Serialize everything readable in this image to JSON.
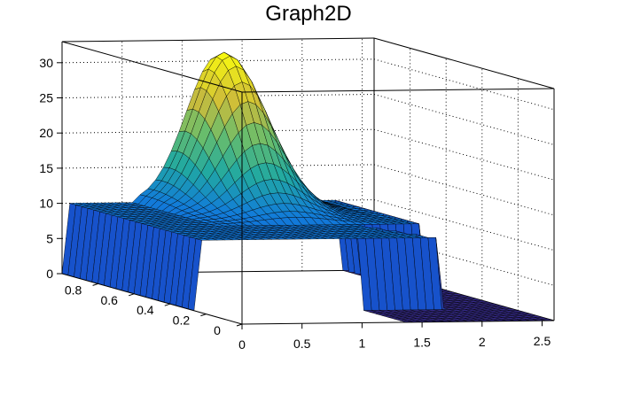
{
  "chart_data": {
    "type": "surface",
    "title": "Graph2D",
    "xlabel": "",
    "ylabel": "",
    "zlabel": "",
    "xlim": [
      0,
      2.6
    ],
    "ylim": [
      0,
      1.0
    ],
    "zlim": [
      0,
      33
    ],
    "x_ticks": [
      "0",
      "0.5",
      "1",
      "1.5",
      "2",
      "2.5"
    ],
    "y_ticks": [
      "0",
      "0.2",
      "0.4",
      "0.6",
      "0.8"
    ],
    "z_ticks": [
      "0",
      "5",
      "10",
      "15",
      "20",
      "25",
      "30"
    ],
    "grid": true,
    "colormap": "viridis-like (dark blue to yellow)",
    "features": [
      {
        "desc": "plateau",
        "z": 10,
        "x_range": [
          0.05,
          2.0
        ],
        "y_range": [
          0.3,
          1.0
        ]
      },
      {
        "desc": "peak",
        "z_max": 31.5,
        "x": 1.3,
        "y": 0.95
      },
      {
        "desc": "zero floor",
        "z": 0,
        "x_range": [
          1.3,
          2.6
        ],
        "y_range": [
          0,
          0.3
        ]
      }
    ],
    "colors": {
      "low": "#352a87",
      "mid": "#21a9a1",
      "high": "#f9fb0e",
      "mesh": "#000000"
    }
  }
}
